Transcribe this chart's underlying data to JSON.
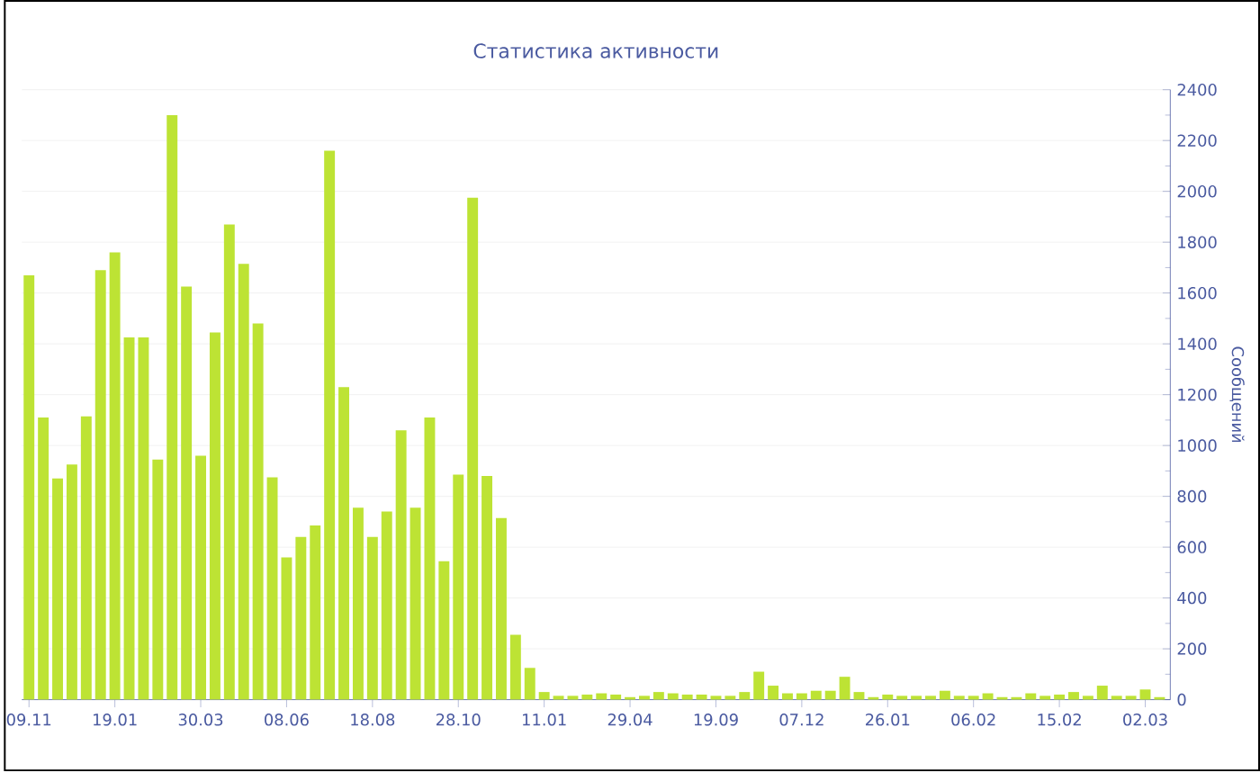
{
  "chart_data": {
    "type": "bar",
    "title": "Статистика активности",
    "ylabel": "Сообщений",
    "color": "#bde334",
    "categories": [
      "09.11",
      null,
      null,
      null,
      null,
      null,
      "19.01",
      null,
      null,
      null,
      null,
      null,
      "30.03",
      null,
      null,
      null,
      null,
      null,
      "08.06",
      null,
      null,
      null,
      null,
      null,
      "18.08",
      null,
      null,
      null,
      null,
      null,
      "28.10",
      null,
      null,
      null,
      null,
      null,
      "11.01",
      null,
      null,
      null,
      null,
      null,
      "29.04",
      null,
      null,
      null,
      null,
      null,
      "19.09",
      null,
      null,
      null,
      null,
      null,
      "07.12",
      null,
      null,
      null,
      null,
      null,
      "26.01",
      null,
      null,
      null,
      null,
      null,
      "06.02",
      null,
      null,
      null,
      null,
      null,
      "15.02",
      null,
      null,
      null,
      null,
      null,
      "02.03",
      null
    ],
    "values": [
      1670,
      1110,
      870,
      925,
      1115,
      1690,
      1760,
      1425,
      1425,
      945,
      2300,
      1625,
      960,
      1445,
      1870,
      1715,
      1480,
      875,
      560,
      640,
      685,
      2160,
      1230,
      755,
      640,
      740,
      1060,
      755,
      1110,
      545,
      885,
      1975,
      880,
      715,
      255,
      125,
      30,
      15,
      15,
      20,
      25,
      20,
      10,
      15,
      30,
      25,
      20,
      20,
      15,
      15,
      30,
      110,
      55,
      25,
      25,
      35,
      35,
      90,
      30,
      10,
      20,
      15,
      15,
      15,
      35,
      15,
      15,
      25,
      10,
      10,
      25,
      15,
      20,
      30,
      15,
      55,
      15,
      15,
      40,
      10
    ],
    "ylim": [
      0,
      2400
    ],
    "yticks": [
      0,
      200,
      400,
      600,
      800,
      1000,
      1200,
      1400,
      1600,
      1800,
      2000,
      2200,
      2400
    ],
    "grid": "y"
  }
}
